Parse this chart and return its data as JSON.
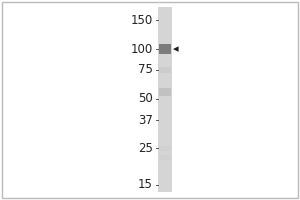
{
  "bg_color": "#ffffff",
  "outer_bg": "#e8e8e8",
  "gel_bg": "#e0e0e0",
  "gel_band_color": "#b0b0b0",
  "mw_labels": [
    "150",
    "100",
    "75",
    "50",
    "37",
    "25",
    "15"
  ],
  "mw_values": [
    150,
    100,
    75,
    50,
    37,
    25,
    15
  ],
  "band_positions": [
    100,
    75,
    55,
    25,
    22
  ],
  "band_darkness": [
    0.55,
    0.25,
    0.3,
    0.2,
    0.2
  ],
  "arrow_mw": 100,
  "arrow_color": "#1a1a1a",
  "label_color": "#222222",
  "label_fontsize": 8.5,
  "tick_color": "#555555"
}
